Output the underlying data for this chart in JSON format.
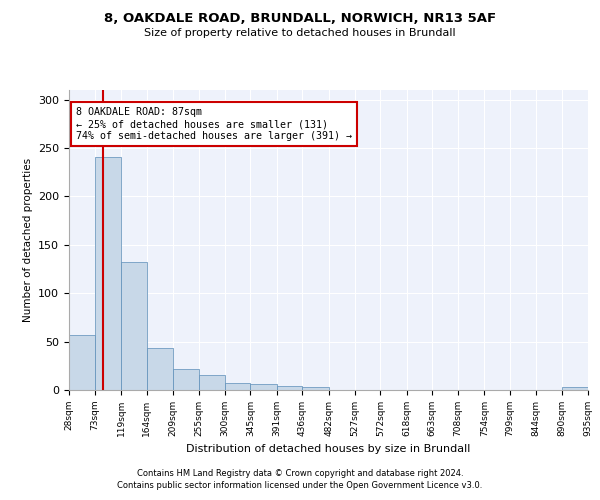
{
  "title1": "8, OAKDALE ROAD, BRUNDALL, NORWICH, NR13 5AF",
  "title2": "Size of property relative to detached houses in Brundall",
  "xlabel": "Distribution of detached houses by size in Brundall",
  "ylabel": "Number of detached properties",
  "footer1": "Contains HM Land Registry data © Crown copyright and database right 2024.",
  "footer2": "Contains public sector information licensed under the Open Government Licence v3.0.",
  "annotation_title": "8 OAKDALE ROAD: 87sqm",
  "annotation_line1": "← 25% of detached houses are smaller (131)",
  "annotation_line2": "74% of semi-detached houses are larger (391) →",
  "property_size": 87,
  "bar_color": "#c8d8e8",
  "bar_edge_color": "#5b8db8",
  "red_line_color": "#cc0000",
  "annotation_box_color": "#ffffff",
  "annotation_box_edge": "#cc0000",
  "background_color": "#eef2fb",
  "bins": [
    28,
    73,
    119,
    164,
    209,
    255,
    300,
    345,
    391,
    436,
    482,
    527,
    572,
    618,
    663,
    708,
    754,
    799,
    844,
    890,
    935
  ],
  "counts": [
    57,
    241,
    132,
    43,
    22,
    15,
    7,
    6,
    4,
    3,
    0,
    0,
    0,
    0,
    0,
    0,
    0,
    0,
    0,
    3
  ],
  "ylim": [
    0,
    310
  ],
  "yticks": [
    0,
    50,
    100,
    150,
    200,
    250,
    300
  ]
}
